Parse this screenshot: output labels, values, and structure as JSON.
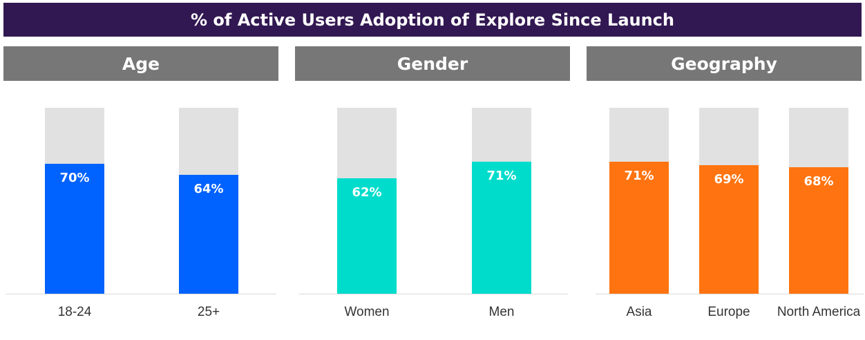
{
  "title": "% of Active Users Adoption of Explore Since Launch",
  "colors": {
    "title_bg": "#321852",
    "header_bg": "#777777",
    "track": "#e1e1e1",
    "age": "#0062ff",
    "gender": "#00dccc",
    "geography": "#ff7411"
  },
  "chart_data": [
    {
      "type": "bar",
      "title": "Age",
      "categories": [
        "18-24",
        "25+"
      ],
      "values": [
        70,
        64
      ],
      "value_labels": [
        "70%",
        "64%"
      ],
      "ylim": [
        0,
        100
      ],
      "color": "#0062ff"
    },
    {
      "type": "bar",
      "title": "Gender",
      "categories": [
        "Women",
        "Men"
      ],
      "values": [
        62,
        71
      ],
      "value_labels": [
        "62%",
        "71%"
      ],
      "ylim": [
        0,
        100
      ],
      "color": "#00dccc"
    },
    {
      "type": "bar",
      "title": "Geography",
      "categories": [
        "Asia",
        "Europe",
        "North America"
      ],
      "values": [
        71,
        69,
        68
      ],
      "value_labels": [
        "71%",
        "69%",
        "68%"
      ],
      "ylim": [
        0,
        100
      ],
      "color": "#ff7411"
    }
  ]
}
